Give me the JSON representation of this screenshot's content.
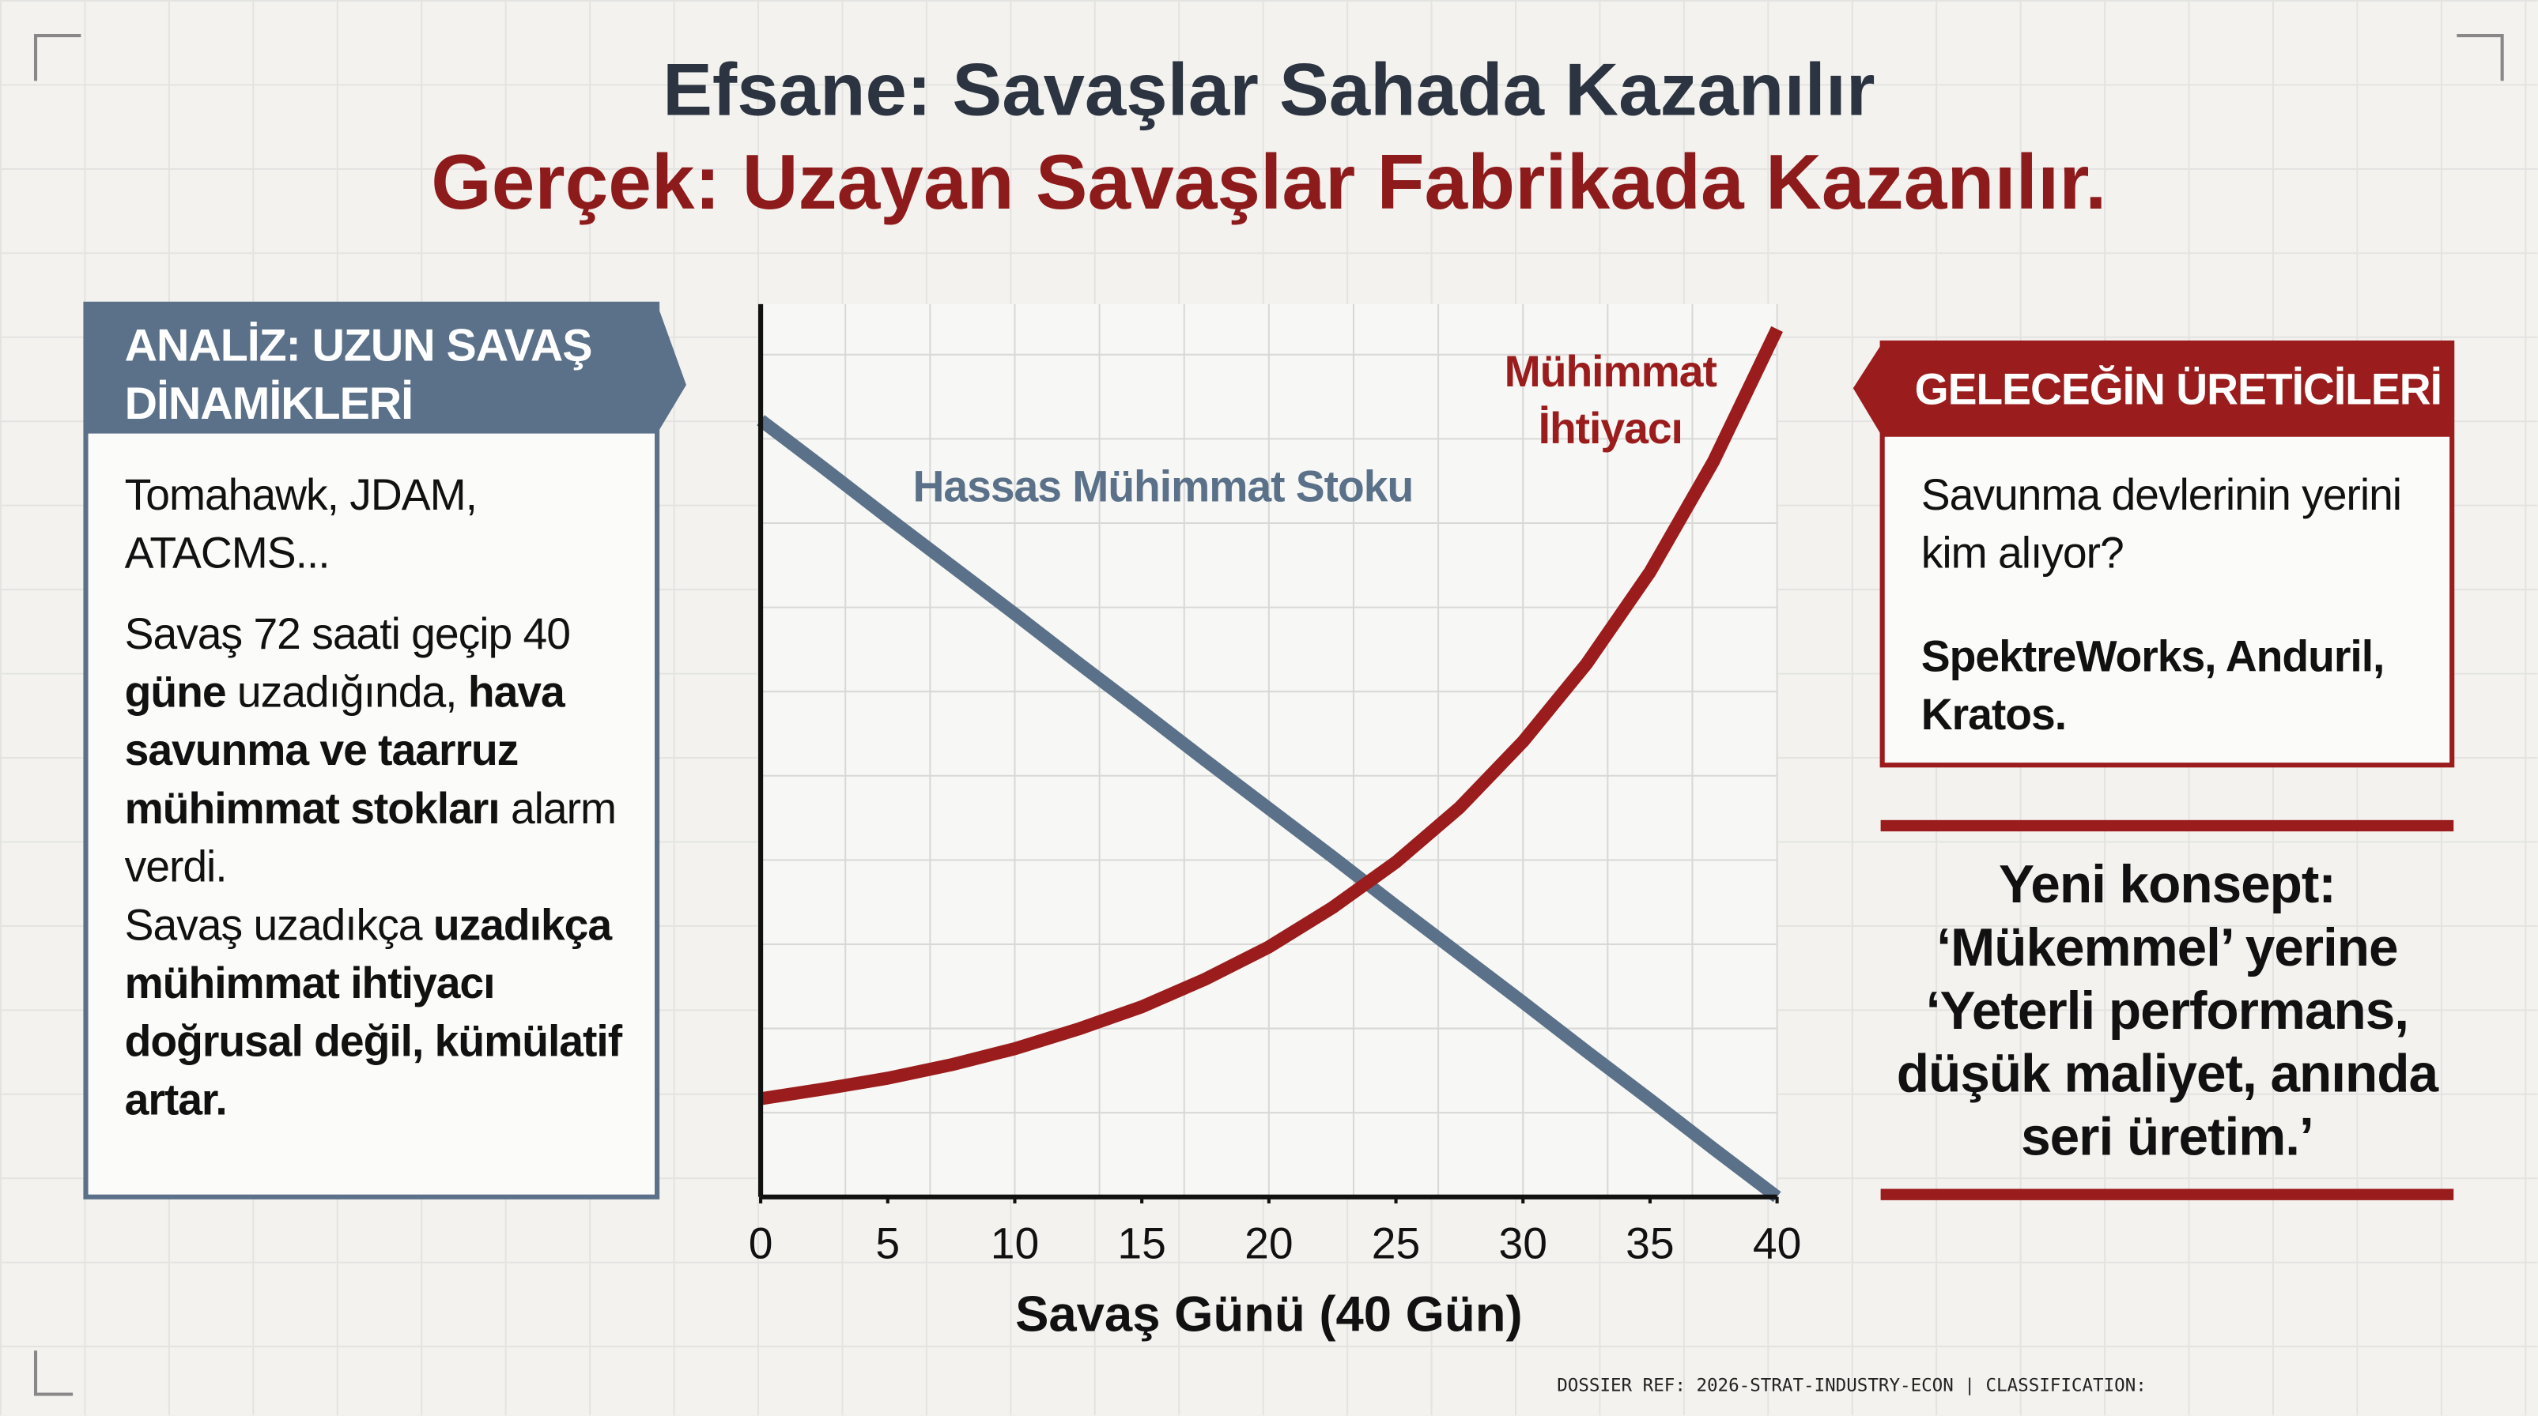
{
  "header": {
    "myth": "Efsane: Savaşlar Sahada Kazanılır",
    "reality": "Gerçek: Uzayan Savaşlar Fabrikada Kazanılır."
  },
  "left_panel": {
    "title": "ANALİZ: UZUN SAVAŞ DİNAMİKLERİ",
    "paragraphs": [
      [
        {
          "text": "Tomahawk, JDAM, ATACMS...",
          "bold": false
        }
      ],
      [
        {
          "text": "Savaş 72 saati geçip 40 ",
          "bold": false
        },
        {
          "text": "güne",
          "bold": true
        },
        {
          "text": " uzadığında, ",
          "bold": false
        },
        {
          "text": "hava savunma ve taarruz mühimmat stokları",
          "bold": true
        },
        {
          "text": " alarm verdi.",
          "bold": false
        }
      ],
      [
        {
          "text": "Savaş uzadıkça ",
          "bold": false
        },
        {
          "text": "uzadıkça mühimmat ihtiyacı doğrusal değil, kümülatif artar.",
          "bold": true
        }
      ]
    ]
  },
  "right_panel": {
    "title": "GELECEĞİN ÜRETİCİLERİ",
    "question": "Savunma devlerinin yerini kim alıyor?",
    "answer": "SpektreWorks, Anduril, Kratos."
  },
  "quote": "Yeni konsept: ‘Mükemmel’ yerine ‘Yeterli performans, düşük maliyet, anında seri üretim.’",
  "footer": "DOSSIER REF: 2026-STRAT-INDUSTRY-ECON | CLASSIFICATION:",
  "chart_data": {
    "type": "line",
    "x_label": "Savaş Günü (40 Gün)",
    "x": [
      0,
      2.5,
      5,
      7.5,
      10,
      12.5,
      15,
      17.5,
      20,
      22.5,
      25,
      27.5,
      30,
      32.5,
      35,
      37.5,
      40
    ],
    "series": [
      {
        "name": "Hassas Mühimmat Stoku",
        "color": "#5b7189",
        "values": [
          87,
          81.6,
          76.1,
          70.7,
          65.3,
          59.8,
          54.4,
          48.9,
          43.5,
          38.1,
          32.6,
          27.2,
          21.8,
          16.3,
          10.9,
          5.4,
          0
        ]
      },
      {
        "name": "Mühimmat İhtiyacı",
        "color": "#9b1c1c",
        "values": [
          11,
          12.1,
          13.3,
          14.8,
          16.6,
          18.8,
          21.3,
          24.4,
          28,
          32.4,
          37.5,
          43.6,
          51,
          59.7,
          70,
          82.4,
          97.2
        ]
      }
    ],
    "xlim": [
      0,
      40
    ],
    "xticks": [
      0,
      5,
      10,
      15,
      20,
      25,
      30,
      35,
      40
    ],
    "ylim": [
      0,
      100
    ],
    "grid": true
  }
}
